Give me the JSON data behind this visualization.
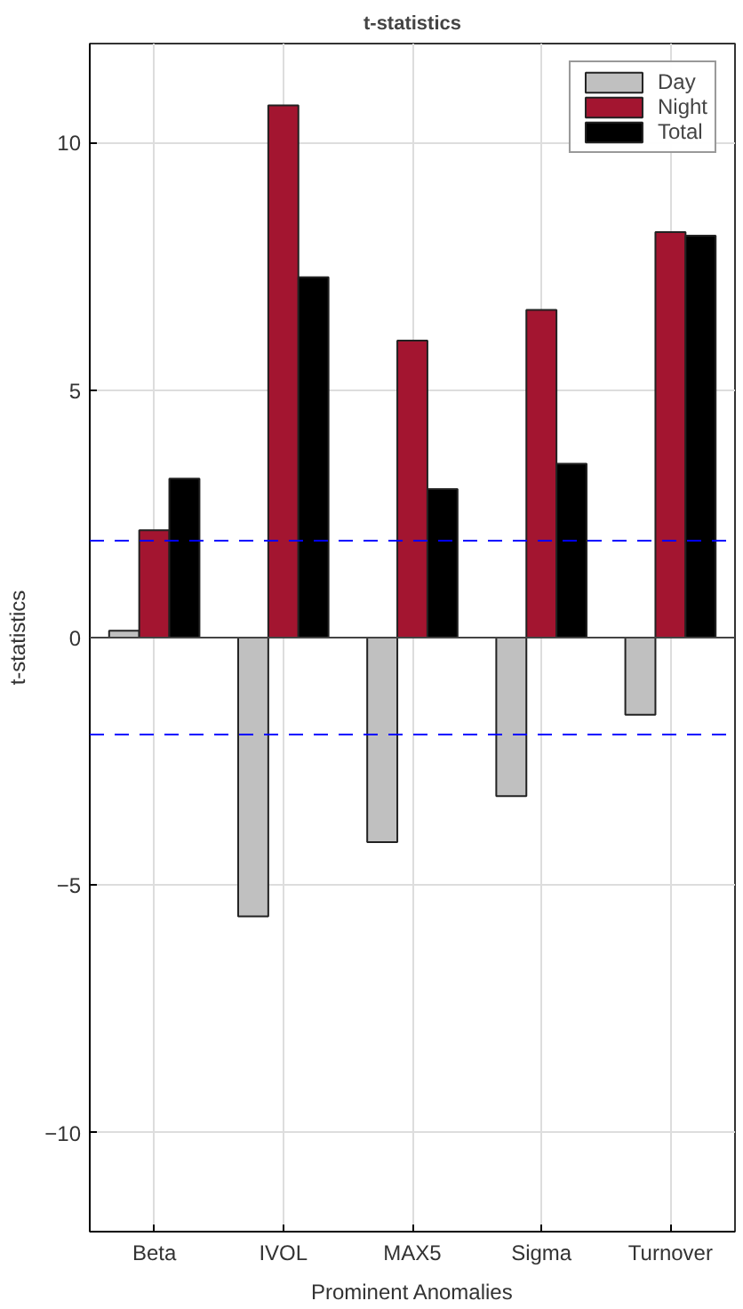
{
  "chart_data": {
    "type": "bar",
    "title": "t-statistics",
    "xlabel": "Prominent Anomalies",
    "ylabel": "t-statistics",
    "categories": [
      "Beta",
      "IVOL",
      "MAX5",
      "Sigma",
      "Turnover"
    ],
    "series": [
      {
        "name": "Day",
        "color": "#c0c0c0",
        "values": [
          0.14,
          -5.63,
          -4.13,
          -3.2,
          -1.56
        ]
      },
      {
        "name": "Night",
        "color": "#a31530",
        "values": [
          2.17,
          10.75,
          6.0,
          6.62,
          8.19
        ]
      },
      {
        "name": "Total",
        "color": "#000000",
        "values": [
          3.21,
          7.28,
          3.0,
          3.51,
          8.12
        ]
      }
    ],
    "ylim": [
      -12,
      12
    ],
    "yticks": [
      -10,
      -5,
      0,
      5,
      10
    ],
    "grid": true,
    "legend": "top right",
    "ref_lines": [
      {
        "axis": "y",
        "value": 1.96,
        "color": "#0000ff",
        "line_style": "dashed"
      },
      {
        "axis": "y",
        "value": -1.96,
        "color": "#0000ff",
        "line_style": "dashed"
      }
    ]
  }
}
